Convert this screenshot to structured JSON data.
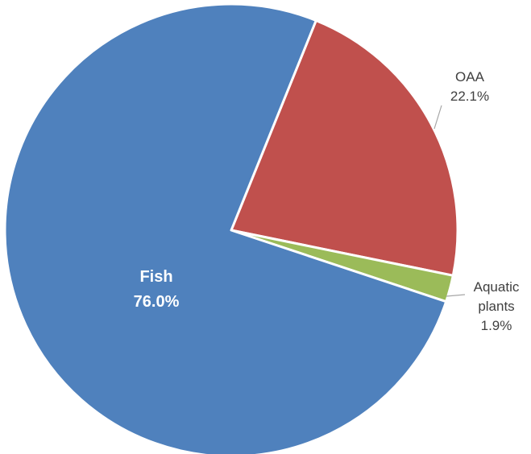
{
  "chart_data": {
    "type": "pie",
    "title": "",
    "slices": [
      {
        "label": "OAA",
        "label_lines": [
          "OAA"
        ],
        "value": 22.1,
        "value_text": "22.1%",
        "color": "#C0504D",
        "label_style": "outside"
      },
      {
        "label": "Aquatic plants",
        "label_lines": [
          "Aquatic",
          "plants"
        ],
        "value": 1.9,
        "value_text": "1.9%",
        "color": "#9BBB59",
        "label_style": "outside"
      },
      {
        "label": "Fish",
        "label_lines": [
          "Fish"
        ],
        "value": 76.0,
        "value_text": "76.0%",
        "color": "#4F81BD",
        "label_style": "inside"
      }
    ],
    "start_angle_deg": 22,
    "direction": "clockwise",
    "legend": "none"
  }
}
